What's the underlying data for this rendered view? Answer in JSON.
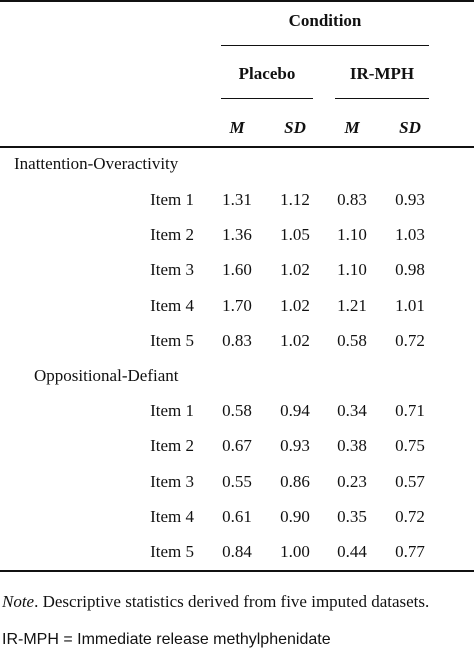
{
  "table": {
    "condition_label": "Condition",
    "group_labels": [
      "Placebo",
      "IR-MPH"
    ],
    "stat_labels": [
      "M",
      "SD",
      "M",
      "SD"
    ],
    "sections": [
      {
        "title": "Inattention-Overactivity",
        "rows": [
          {
            "label": "Item 1",
            "values": [
              "1.31",
              "1.12",
              "0.83",
              "0.93"
            ]
          },
          {
            "label": "Item 2",
            "values": [
              "1.36",
              "1.05",
              "1.10",
              "1.03"
            ]
          },
          {
            "label": "Item 3",
            "values": [
              "1.60",
              "1.02",
              "1.10",
              "0.98"
            ]
          },
          {
            "label": "Item 4",
            "values": [
              "1.70",
              "1.02",
              "1.21",
              "1.01"
            ]
          },
          {
            "label": "Item 5",
            "values": [
              "0.83",
              "1.02",
              "0.58",
              "0.72"
            ]
          }
        ]
      },
      {
        "title": "Oppositional-Defiant",
        "rows": [
          {
            "label": "Item 1",
            "values": [
              "0.58",
              "0.94",
              "0.34",
              "0.71"
            ]
          },
          {
            "label": "Item 2",
            "values": [
              "0.67",
              "0.93",
              "0.38",
              "0.75"
            ]
          },
          {
            "label": "Item 3",
            "values": [
              "0.55",
              "0.86",
              "0.23",
              "0.57"
            ]
          },
          {
            "label": "Item 4",
            "values": [
              "0.61",
              "0.90",
              "0.35",
              "0.72"
            ]
          },
          {
            "label": "Item 5",
            "values": [
              "0.84",
              "1.00",
              "0.44",
              "0.77"
            ]
          }
        ]
      }
    ]
  },
  "note": {
    "prefix": "Note",
    "text": ". Descriptive statistics derived from five imputed datasets.",
    "abbreviation": "IR-MPH = Immediate release methylphenidate"
  }
}
